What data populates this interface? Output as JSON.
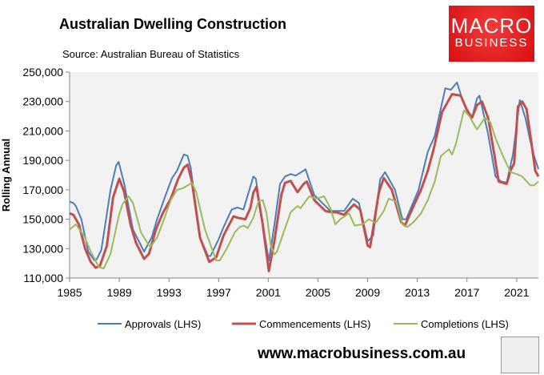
{
  "chart_data": {
    "type": "line",
    "title": "Australian Dwelling Construction",
    "subtitle": "Source: Australian Bureau of Statistics",
    "xlabel": "",
    "ylabel": "Rolling Annual",
    "xlim": [
      1985,
      2022.75
    ],
    "ylim": [
      110000,
      250000
    ],
    "xticks": [
      "1985",
      "1989",
      "1993",
      "1997",
      "2001",
      "2005",
      "2009",
      "2013",
      "2017",
      "2021"
    ],
    "yticks": [
      "110,000",
      "130,000",
      "150,000",
      "170,000",
      "190,000",
      "210,000",
      "230,000",
      "250,000"
    ],
    "grid": false,
    "legend": "bottom",
    "series": [
      {
        "name": "Approvals (LHS)",
        "color": "#4a7ebb",
        "points": [
          [
            1985,
            162000
          ],
          [
            1985.3,
            161000
          ],
          [
            1985.5,
            159000
          ],
          [
            1985.95,
            150000
          ],
          [
            1986.5,
            128000
          ],
          [
            1987,
            122000
          ],
          [
            1987.2,
            123000
          ],
          [
            1987.55,
            129000
          ],
          [
            1988.3,
            170000
          ],
          [
            1988.75,
            186500
          ],
          [
            1988.95,
            189000
          ],
          [
            1989.4,
            174000
          ],
          [
            1990.1,
            143000
          ],
          [
            1991,
            128000
          ],
          [
            1991.6,
            137500
          ],
          [
            1992.05,
            150000
          ],
          [
            1992.7,
            165600
          ],
          [
            1993.25,
            178000
          ],
          [
            1993.65,
            183000
          ],
          [
            1994.2,
            194000
          ],
          [
            1994.5,
            193000
          ],
          [
            1994.75,
            185000
          ],
          [
            1995.5,
            137500
          ],
          [
            1996.15,
            125000
          ],
          [
            1996.35,
            125000
          ],
          [
            1997,
            136500
          ],
          [
            1997.4,
            144700
          ],
          [
            1998.05,
            156500
          ],
          [
            1998.5,
            158000
          ],
          [
            1999,
            156500
          ],
          [
            1999.8,
            179000
          ],
          [
            2000,
            177500
          ],
          [
            2000.55,
            146500
          ],
          [
            2001.05,
            122000
          ],
          [
            2001.5,
            146500
          ],
          [
            2001.95,
            174000
          ],
          [
            2002.35,
            179000
          ],
          [
            2002.8,
            180700
          ],
          [
            2003.2,
            179600
          ],
          [
            2003.85,
            183000
          ],
          [
            2004,
            184000
          ],
          [
            2004.7,
            166500
          ],
          [
            2006,
            155600
          ],
          [
            2007.1,
            155600
          ],
          [
            2007.8,
            164000
          ],
          [
            2008.3,
            161000
          ],
          [
            2009,
            135000
          ],
          [
            2009.45,
            139000
          ],
          [
            2010,
            177000
          ],
          [
            2010.4,
            182000
          ],
          [
            2011.2,
            170000
          ],
          [
            2011.8,
            150000
          ],
          [
            2012.1,
            150000
          ],
          [
            2013.1,
            170000
          ],
          [
            2013.85,
            196000
          ],
          [
            2014.4,
            206500
          ],
          [
            2015.25,
            239000
          ],
          [
            2015.7,
            238000
          ],
          [
            2016.2,
            243000
          ],
          [
            2016.6,
            232000
          ],
          [
            2017,
            225000
          ],
          [
            2017.4,
            219000
          ],
          [
            2017.8,
            232000
          ],
          [
            2018,
            234000
          ],
          [
            2018.7,
            208000
          ],
          [
            2019.3,
            179000
          ],
          [
            2019.75,
            175600
          ],
          [
            2020.2,
            175000
          ],
          [
            2020.7,
            194000
          ],
          [
            2021.25,
            231000
          ],
          [
            2021.7,
            219000
          ],
          [
            2022.1,
            203000
          ],
          [
            2022.4,
            193000
          ],
          [
            2022.75,
            184000
          ]
        ]
      },
      {
        "name": "Commencements (LHS)",
        "color": "#c0504d",
        "points": [
          [
            1985,
            154000
          ],
          [
            1985.3,
            153000
          ],
          [
            1985.75,
            146500
          ],
          [
            1986.25,
            130000
          ],
          [
            1986.7,
            121000
          ],
          [
            1987.1,
            117000
          ],
          [
            1987.45,
            118400
          ],
          [
            1988,
            132000
          ],
          [
            1988.5,
            164700
          ],
          [
            1989,
            177500
          ],
          [
            1989.4,
            168400
          ],
          [
            1989.9,
            146500
          ],
          [
            1990.35,
            134000
          ],
          [
            1991,
            123000
          ],
          [
            1991.4,
            126500
          ],
          [
            1991.95,
            143000
          ],
          [
            1992.5,
            154000
          ],
          [
            1993.15,
            164000
          ],
          [
            1993.75,
            177500
          ],
          [
            1994.2,
            185000
          ],
          [
            1994.5,
            187000
          ],
          [
            1994.85,
            175600
          ],
          [
            1995.5,
            137500
          ],
          [
            1996.25,
            121000
          ],
          [
            1996.8,
            124000
          ],
          [
            1997.4,
            139000
          ],
          [
            1998.2,
            152000
          ],
          [
            1998.5,
            151000
          ],
          [
            1999.15,
            150000
          ],
          [
            1999.55,
            157500
          ],
          [
            1999.8,
            168000
          ],
          [
            2000.05,
            172000
          ],
          [
            2000.55,
            146500
          ],
          [
            2001.05,
            114700
          ],
          [
            2001.5,
            135600
          ],
          [
            2002.05,
            166500
          ],
          [
            2002.35,
            174700
          ],
          [
            2002.8,
            176000
          ],
          [
            2003.35,
            168400
          ],
          [
            2003.85,
            174000
          ],
          [
            2004.1,
            175600
          ],
          [
            2004.7,
            163000
          ],
          [
            2005.6,
            155600
          ],
          [
            2006.1,
            154700
          ],
          [
            2006.5,
            154700
          ],
          [
            2007.1,
            153000
          ],
          [
            2007.9,
            160000
          ],
          [
            2008.4,
            156500
          ],
          [
            2009,
            132000
          ],
          [
            2009.2,
            131000
          ],
          [
            2009.9,
            168000
          ],
          [
            2010.3,
            178000
          ],
          [
            2010.95,
            170000
          ],
          [
            2011.7,
            148000
          ],
          [
            2012,
            145600
          ],
          [
            2012.7,
            159000
          ],
          [
            2013.3,
            170000
          ],
          [
            2013.85,
            183000
          ],
          [
            2014.3,
            197000
          ],
          [
            2015,
            223000
          ],
          [
            2015.8,
            235000
          ],
          [
            2016.5,
            234000
          ],
          [
            2017,
            224000
          ],
          [
            2017.4,
            219000
          ],
          [
            2017.8,
            227500
          ],
          [
            2018.2,
            230000
          ],
          [
            2018.7,
            219000
          ],
          [
            2019.2,
            194000
          ],
          [
            2019.55,
            175600
          ],
          [
            2020.2,
            174000
          ],
          [
            2020.5,
            183000
          ],
          [
            2020.8,
            188000
          ],
          [
            2021.1,
            226500
          ],
          [
            2021.45,
            230000
          ],
          [
            2021.8,
            224700
          ],
          [
            2022.2,
            201000
          ],
          [
            2022.5,
            183000
          ],
          [
            2022.75,
            179000
          ]
        ]
      },
      {
        "name": "Completions (LHS)",
        "color": "#9bbb59",
        "points": [
          [
            1985,
            143000
          ],
          [
            1985.5,
            146500
          ],
          [
            1986.15,
            139000
          ],
          [
            1986.7,
            128000
          ],
          [
            1987.35,
            117500
          ],
          [
            1987.75,
            116500
          ],
          [
            1988.3,
            126500
          ],
          [
            1988.95,
            152000
          ],
          [
            1989.25,
            160000
          ],
          [
            1989.75,
            165600
          ],
          [
            1990.1,
            161000
          ],
          [
            1990.75,
            141000
          ],
          [
            1991.2,
            134700
          ],
          [
            1991.5,
            131000
          ],
          [
            1992.05,
            137500
          ],
          [
            1992.6,
            150000
          ],
          [
            1993.15,
            163000
          ],
          [
            1993.65,
            170000
          ],
          [
            1994.1,
            171000
          ],
          [
            1994.85,
            174700
          ],
          [
            1995.2,
            168400
          ],
          [
            1995.9,
            143000
          ],
          [
            1996.8,
            122000
          ],
          [
            1997.1,
            122000
          ],
          [
            1997.65,
            130000
          ],
          [
            1998.3,
            141000
          ],
          [
            1998.7,
            144700
          ],
          [
            1999.05,
            145600
          ],
          [
            1999.35,
            144000
          ],
          [
            1999.8,
            151000
          ],
          [
            2000.2,
            162000
          ],
          [
            2000.55,
            163000
          ],
          [
            2000.85,
            154700
          ],
          [
            2001.2,
            132000
          ],
          [
            2001.5,
            126000
          ],
          [
            2001.7,
            128000
          ],
          [
            2002.15,
            139000
          ],
          [
            2002.8,
            154700
          ],
          [
            2003.35,
            159000
          ],
          [
            2003.6,
            157500
          ],
          [
            2004.3,
            165600
          ],
          [
            2004.9,
            164000
          ],
          [
            2005.5,
            165600
          ],
          [
            2006,
            157500
          ],
          [
            2006.4,
            146500
          ],
          [
            2006.8,
            150000
          ],
          [
            2007.5,
            154000
          ],
          [
            2007.95,
            145600
          ],
          [
            2008.6,
            146500
          ],
          [
            2009.1,
            150000
          ],
          [
            2009.65,
            147500
          ],
          [
            2010.3,
            155600
          ],
          [
            2010.7,
            164000
          ],
          [
            2011.3,
            162000
          ],
          [
            2011.8,
            146500
          ],
          [
            2012.2,
            144700
          ],
          [
            2012.7,
            148000
          ],
          [
            2013.3,
            154000
          ],
          [
            2013.85,
            163000
          ],
          [
            2014.4,
            175600
          ],
          [
            2014.9,
            193000
          ],
          [
            2015.55,
            197500
          ],
          [
            2015.8,
            194000
          ],
          [
            2016.1,
            201000
          ],
          [
            2016.75,
            224000
          ],
          [
            2017.2,
            220000
          ],
          [
            2017.8,
            211000
          ],
          [
            2018.45,
            219000
          ],
          [
            2018.9,
            215600
          ],
          [
            2019.3,
            205000
          ],
          [
            2019.95,
            192000
          ],
          [
            2020.5,
            182000
          ],
          [
            2021,
            180700
          ],
          [
            2021.45,
            179000
          ],
          [
            2022.1,
            173000
          ],
          [
            2022.4,
            173000
          ],
          [
            2022.75,
            175600
          ]
        ]
      }
    ]
  },
  "branding": {
    "logo_line1": "MACRO",
    "logo_line2": "BUSINESS",
    "website": "www.macrobusiness.com.au",
    "logo_color": "#e01b1e"
  }
}
